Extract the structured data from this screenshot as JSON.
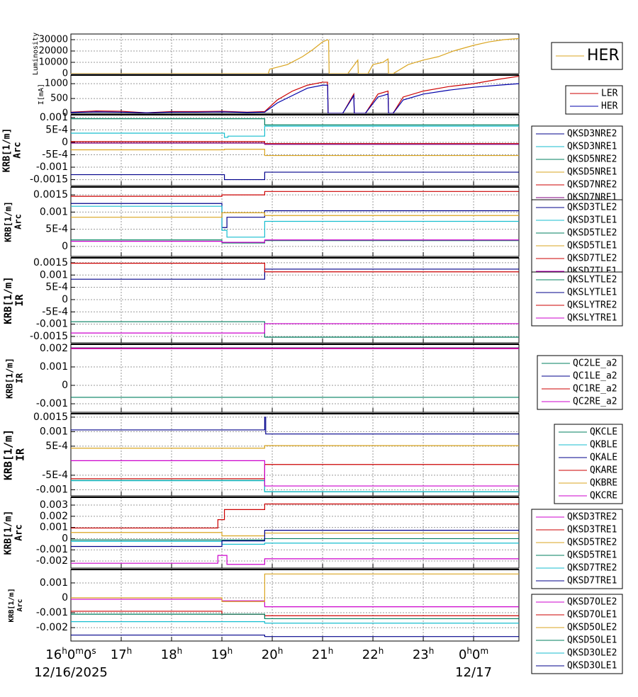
{
  "chart_data": [
    {
      "type": "line",
      "ylabel": [
        "Luminosity"
      ],
      "xlim": [
        16,
        24.9
      ],
      "xticks": [
        16,
        17,
        18,
        19,
        20,
        21,
        22,
        23,
        24
      ],
      "ylim": [
        0,
        35000
      ],
      "yticks": [
        0,
        10000,
        20000,
        30000
      ],
      "grid": true,
      "series": [
        {
          "name": "HER",
          "color": "#daa520",
          "x": [
            16,
            19.92,
            19.95,
            20.3,
            20.6,
            20.8,
            21.0,
            21.1,
            21.12,
            21.13,
            21.5,
            21.7,
            21.71,
            21.9,
            22.0,
            22.2,
            22.3,
            22.31,
            22.4,
            22.7,
            23.0,
            23.3,
            23.6,
            24.0,
            24.3,
            24.6,
            24.9
          ],
          "values": [
            0,
            0,
            4000,
            8000,
            15000,
            21000,
            28000,
            30000,
            29000,
            0,
            0,
            12000,
            0,
            0,
            8000,
            10000,
            13000,
            0,
            0,
            8000,
            12000,
            15000,
            20000,
            25000,
            28000,
            30000,
            31000
          ]
        }
      ]
    },
    {
      "type": "line",
      "ylabel": [
        "I[mA]"
      ],
      "xlim": [
        16,
        24.9
      ],
      "xticks": [
        16,
        17,
        18,
        19,
        20,
        21,
        22,
        23,
        24
      ],
      "ylim": [
        0,
        1290
      ],
      "yticks": [
        0,
        500,
        1000
      ],
      "grid": true,
      "series": [
        {
          "name": "LER",
          "color": "#cc0000",
          "x": [
            16,
            16.5,
            17,
            17.5,
            18,
            18.5,
            19,
            19.5,
            19.85,
            20.1,
            20.4,
            20.7,
            21.0,
            21.1,
            21.11,
            21.4,
            21.62,
            21.63,
            21.85,
            22.1,
            22.3,
            22.31,
            22.4,
            22.6,
            23.0,
            23.5,
            24,
            24.5,
            24.9
          ],
          "values": [
            40,
            80,
            70,
            20,
            60,
            60,
            70,
            40,
            60,
            450,
            750,
            950,
            1050,
            1050,
            0,
            0,
            650,
            0,
            0,
            650,
            750,
            0,
            0,
            550,
            750,
            900,
            1000,
            1150,
            1250
          ]
        },
        {
          "name": "HER",
          "color": "#0000aa",
          "x": [
            16,
            16.5,
            17,
            17.5,
            18,
            18.5,
            19,
            19.5,
            19.85,
            20.1,
            20.4,
            20.7,
            21.0,
            21.1,
            21.11,
            21.4,
            21.62,
            21.63,
            21.85,
            22.1,
            22.3,
            22.31,
            22.4,
            22.6,
            23.0,
            23.5,
            24,
            24.5,
            24.9
          ],
          "values": [
            30,
            50,
            40,
            20,
            40,
            40,
            50,
            30,
            40,
            350,
            600,
            850,
            950,
            950,
            0,
            0,
            600,
            0,
            0,
            550,
            650,
            0,
            0,
            450,
            650,
            780,
            880,
            950,
            1000
          ]
        }
      ]
    },
    {
      "type": "line",
      "step": true,
      "ylabel": [
        "KRB[1/m]",
        "Arc"
      ],
      "xlim": [
        16,
        24.9
      ],
      "xticks": [
        16,
        17,
        18,
        19,
        20,
        21,
        22,
        23,
        24
      ],
      "ylim": [
        -0.00174,
        0.00111
      ],
      "yticks": [
        0.001,
        {
          "value": 0.0005,
          "label": "5E-4"
        },
        0,
        {
          "value": -0.0005,
          "label": "-5E-4"
        },
        -0.001,
        -0.0015
      ],
      "grid": true,
      "series": [
        {
          "name": "QKSD3NRE2",
          "color": "#00008b",
          "x": [
            16,
            19.05,
            19.85
          ],
          "values": [
            -0.0013,
            -0.0015,
            -0.0012
          ]
        },
        {
          "name": "QKSD3NRE1",
          "color": "#17becf",
          "x": [
            16,
            19.05,
            19.12,
            19.85
          ],
          "values": [
            0.00037,
            0.0002,
            0.00025,
            0.00065
          ]
        },
        {
          "name": "QKSD5NRE2",
          "color": "#007f5f",
          "x": [
            16,
            19.85
          ],
          "values": [
            0.00095,
            0.0007
          ]
        },
        {
          "name": "QKSD5NRE1",
          "color": "#daa520",
          "x": [
            16,
            19.05,
            19.85
          ],
          "values": [
            -0.0003,
            -0.00028,
            -0.00053
          ]
        },
        {
          "name": "QKSD7NRE2",
          "color": "#cc0000",
          "x": [
            16,
            19.85
          ],
          "values": [
            3e-05,
            -5e-05
          ]
        },
        {
          "name": "QKSD7NRE1",
          "color": "#800080",
          "x": [
            16,
            19.85
          ],
          "values": [
            -3e-05,
            -8e-05
          ]
        }
      ]
    },
    {
      "type": "line",
      "step": true,
      "ylabel": [
        "KRB[1/m]",
        "Arc"
      ],
      "xlim": [
        16,
        24.9
      ],
      "xticks": [
        16,
        17,
        18,
        19,
        20,
        21,
        22,
        23,
        24
      ],
      "ylim": [
        -0.00029,
        0.00173
      ],
      "yticks": [
        0.0015,
        0.001,
        {
          "value": 0.0005,
          "label": "5E-4"
        },
        0
      ],
      "grid": true,
      "series": [
        {
          "name": "QKSD3TLE2",
          "color": "#00008b",
          "x": [
            16,
            19.0,
            19.1,
            19.85
          ],
          "values": [
            0.00125,
            0.00055,
            0.00085,
            0.00104
          ]
        },
        {
          "name": "QKSD3TLE1",
          "color": "#17becf",
          "x": [
            16,
            19.0,
            19.1,
            19.85
          ],
          "values": [
            0.00117,
            0.00047,
            0.00027,
            0.00073
          ]
        },
        {
          "name": "QKSD5TLE2",
          "color": "#007f5f",
          "x": [
            16,
            19.0,
            19.85
          ],
          "values": [
            0.00019,
            0.0001,
            0.00017
          ]
        },
        {
          "name": "QKSD5TLE1",
          "color": "#daa520",
          "x": [
            16,
            19.0,
            19.85
          ],
          "values": [
            0.00085,
            0.00098,
            0.0009
          ]
        },
        {
          "name": "QKSD7TLE2",
          "color": "#cc0000",
          "x": [
            16,
            19.0,
            19.85
          ],
          "values": [
            0.00146,
            0.0015,
            0.0016
          ]
        },
        {
          "name": "QKSD7TLE1",
          "color": "#cc00cc",
          "x": [
            16,
            19.0,
            19.85
          ],
          "values": [
            0.00015,
            0.00012,
            0.00019
          ]
        }
      ]
    },
    {
      "type": "line",
      "step": true,
      "ylabel": [
        "KRB[1/m]",
        "IR"
      ],
      "xlim": [
        16,
        24.9
      ],
      "xticks": [
        16,
        17,
        18,
        19,
        20,
        21,
        22,
        23,
        24
      ],
      "ylim": [
        -0.00176,
        0.0017
      ],
      "yticks": [
        0.0015,
        0.001,
        {
          "value": 0.0005,
          "label": "5E-4"
        },
        0,
        {
          "value": -0.0005,
          "label": "-5E-4"
        },
        -0.001,
        -0.0015
      ],
      "grid": true,
      "series": [
        {
          "name": "QKSLYTLE2",
          "color": "#007f5f",
          "x": [
            16,
            19.85
          ],
          "values": [
            -0.0009,
            -0.00153
          ]
        },
        {
          "name": "QKSLYTLE1",
          "color": "#00008b",
          "x": [
            16,
            19.85
          ],
          "values": [
            0.00083,
            0.00124
          ]
        },
        {
          "name": "QKSLYTRE2",
          "color": "#cc0000",
          "x": [
            16,
            19.85
          ],
          "values": [
            0.00148,
            0.00113
          ]
        },
        {
          "name": "QKSLYTRE1",
          "color": "#cc00cc",
          "x": [
            16,
            19.85
          ],
          "values": [
            -0.00136,
            -0.00098
          ]
        }
      ]
    },
    {
      "type": "line",
      "step": true,
      "ylabel": [
        "KRB[1/m]",
        "IR"
      ],
      "xlim": [
        16,
        24.9
      ],
      "xticks": [
        16,
        17,
        18,
        19,
        20,
        21,
        22,
        23,
        24
      ],
      "ylim": [
        -0.00146,
        0.00223
      ],
      "yticks": [
        0.002,
        0.001,
        0,
        -0.001
      ],
      "grid": true,
      "series": [
        {
          "name": "QC2LE_a2",
          "color": "#007f5f",
          "x": [
            16
          ],
          "values": [
            -0.00065
          ]
        },
        {
          "name": "QC1LE_a2",
          "color": "#00008b",
          "x": [
            16
          ],
          "values": [
            0.00203
          ]
        },
        {
          "name": "QC1RE_a2",
          "color": "#cc0000",
          "x": [
            16
          ],
          "values": [
            0.00201
          ]
        },
        {
          "name": "QC2RE_a2",
          "color": "#cc00cc",
          "x": [
            16
          ],
          "values": [
            0.00199
          ]
        }
      ]
    },
    {
      "type": "line",
      "step": true,
      "ylabel": [
        "KRB[1/m]",
        "IR"
      ],
      "xlim": [
        16,
        24.9
      ],
      "xticks": [
        16,
        17,
        18,
        19,
        20,
        21,
        22,
        23,
        24
      ],
      "ylim": [
        -0.00121,
        0.00162
      ],
      "yticks": [
        0.0015,
        0.001,
        {
          "value": 0.0005,
          "label": "5E-4"
        },
        {
          "value": -0.0005,
          "label": "-5E-4"
        },
        -0.001
      ],
      "grid": true,
      "series": [
        {
          "name": "QKCLE",
          "color": "#007f5f",
          "x": [
            16,
            19.85
          ],
          "values": [
            -0.00068,
            -0.00107
          ]
        },
        {
          "name": "QKBLE",
          "color": "#17becf",
          "x": [
            16,
            19.85
          ],
          "values": [
            -0.00069,
            -0.00107
          ]
        },
        {
          "name": "QKALE",
          "color": "#00008b",
          "x": [
            16,
            19.85,
            19.87
          ],
          "values": [
            0.00106,
            0.0015,
            0.00092
          ]
        },
        {
          "name": "QKARE",
          "color": "#cc0000",
          "x": [
            16,
            19.85
          ],
          "values": [
            -0.00062,
            -0.00013
          ]
        },
        {
          "name": "QKBRE",
          "color": "#daa520",
          "x": [
            16,
            19.85
          ],
          "values": [
            0.00043,
            0.00052
          ]
        },
        {
          "name": "QKCRE",
          "color": "#cc00cc",
          "x": [
            16,
            19.85
          ],
          "values": [
            0,
            -0.00087
          ]
        }
      ]
    },
    {
      "type": "line",
      "step": true,
      "ylabel": [
        "KRB[1/m]",
        "Arc"
      ],
      "xlim": [
        16,
        24.9
      ],
      "xticks": [
        16,
        17,
        18,
        19,
        20,
        21,
        22,
        23,
        24
      ],
      "ylim": [
        -0.00263,
        0.0037
      ],
      "yticks": [
        0.003,
        0.002,
        0.001,
        0,
        -0.001,
        -0.002
      ],
      "grid": true,
      "series": [
        {
          "name": "QKSD3TRE2",
          "color": "#cc00cc",
          "x": [
            16,
            18.92,
            19.1,
            19.85
          ],
          "values": [
            -0.0022,
            -0.0015,
            -0.0023,
            -0.0018
          ]
        },
        {
          "name": "QKSD3TRE1",
          "color": "#cc0000",
          "x": [
            16,
            18.92,
            19.05,
            19.85
          ],
          "values": [
            0.00095,
            0.0017,
            0.0026,
            0.0031
          ]
        },
        {
          "name": "QKSD5TRE2",
          "color": "#daa520",
          "x": [
            16,
            19.0,
            19.85
          ],
          "values": [
            0.00055,
            0.00025,
            0.0005
          ]
        },
        {
          "name": "QKSD5TRE1",
          "color": "#007f5f",
          "x": [
            16,
            19.85
          ],
          "values": [
            -0.00012,
            0
          ]
        },
        {
          "name": "QKSD7TRE2",
          "color": "#17becf",
          "x": [
            16,
            19.0,
            19.85
          ],
          "values": [
            -0.00025,
            -0.0005,
            -0.0004
          ]
        },
        {
          "name": "QKSD7TRE1",
          "color": "#00008b",
          "x": [
            16,
            19.0,
            19.85
          ],
          "values": [
            -0.0007,
            -0.0002,
            0.00075
          ]
        }
      ]
    },
    {
      "type": "line",
      "step": true,
      "ylabel": [
        "KRB[1/m]",
        "Arc"
      ],
      "xlim": [
        16,
        24.9
      ],
      "xticks": [
        {
          "value": 16,
          "label": "16h0m0s"
        },
        {
          "value": 17,
          "label": "17h"
        },
        {
          "value": 18,
          "label": "18h"
        },
        {
          "value": 19,
          "label": "19h"
        },
        {
          "value": 20,
          "label": "20h"
        },
        {
          "value": 21,
          "label": "21h"
        },
        {
          "value": 22,
          "label": "22h"
        },
        {
          "value": 23,
          "label": "23h"
        },
        {
          "value": 24,
          "label": "0h0m"
        }
      ],
      "date_labels": [
        {
          "value": 16,
          "label": "12/16/2025"
        },
        {
          "value": 24,
          "label": "12/17"
        }
      ],
      "ylim": [
        -0.0029,
        0.0019
      ],
      "yticks": [
        0.001,
        0,
        -0.001,
        -0.002
      ],
      "grid": true,
      "series": [
        {
          "name": "QKSD7OLE2",
          "color": "#cc00cc",
          "x": [
            16,
            19.0,
            19.85
          ],
          "values": [
            -0.0001,
            -0.0002,
            -0.0006
          ]
        },
        {
          "name": "QKSD7OLE1",
          "color": "#cc0000",
          "x": [
            16,
            19.0,
            19.85
          ],
          "values": [
            -0.0009,
            -0.0011,
            -0.0012
          ]
        },
        {
          "name": "QKSD5OLE2",
          "color": "#daa520",
          "x": [
            16,
            19.0,
            19.85
          ],
          "values": [
            0,
            -0.00025,
            0.0016
          ]
        },
        {
          "name": "QKSD5OLE1",
          "color": "#007f5f",
          "x": [
            16,
            19.85
          ],
          "values": [
            -0.0011,
            -0.0014
          ]
        },
        {
          "name": "QKSD3OLE2",
          "color": "#17becf",
          "x": [
            16,
            19.85
          ],
          "values": [
            -0.0016,
            -0.0017
          ]
        },
        {
          "name": "QKSD3OLE1",
          "color": "#00008b",
          "x": [
            16,
            19.85
          ],
          "values": [
            -0.0025,
            -0.0026
          ]
        }
      ]
    }
  ]
}
